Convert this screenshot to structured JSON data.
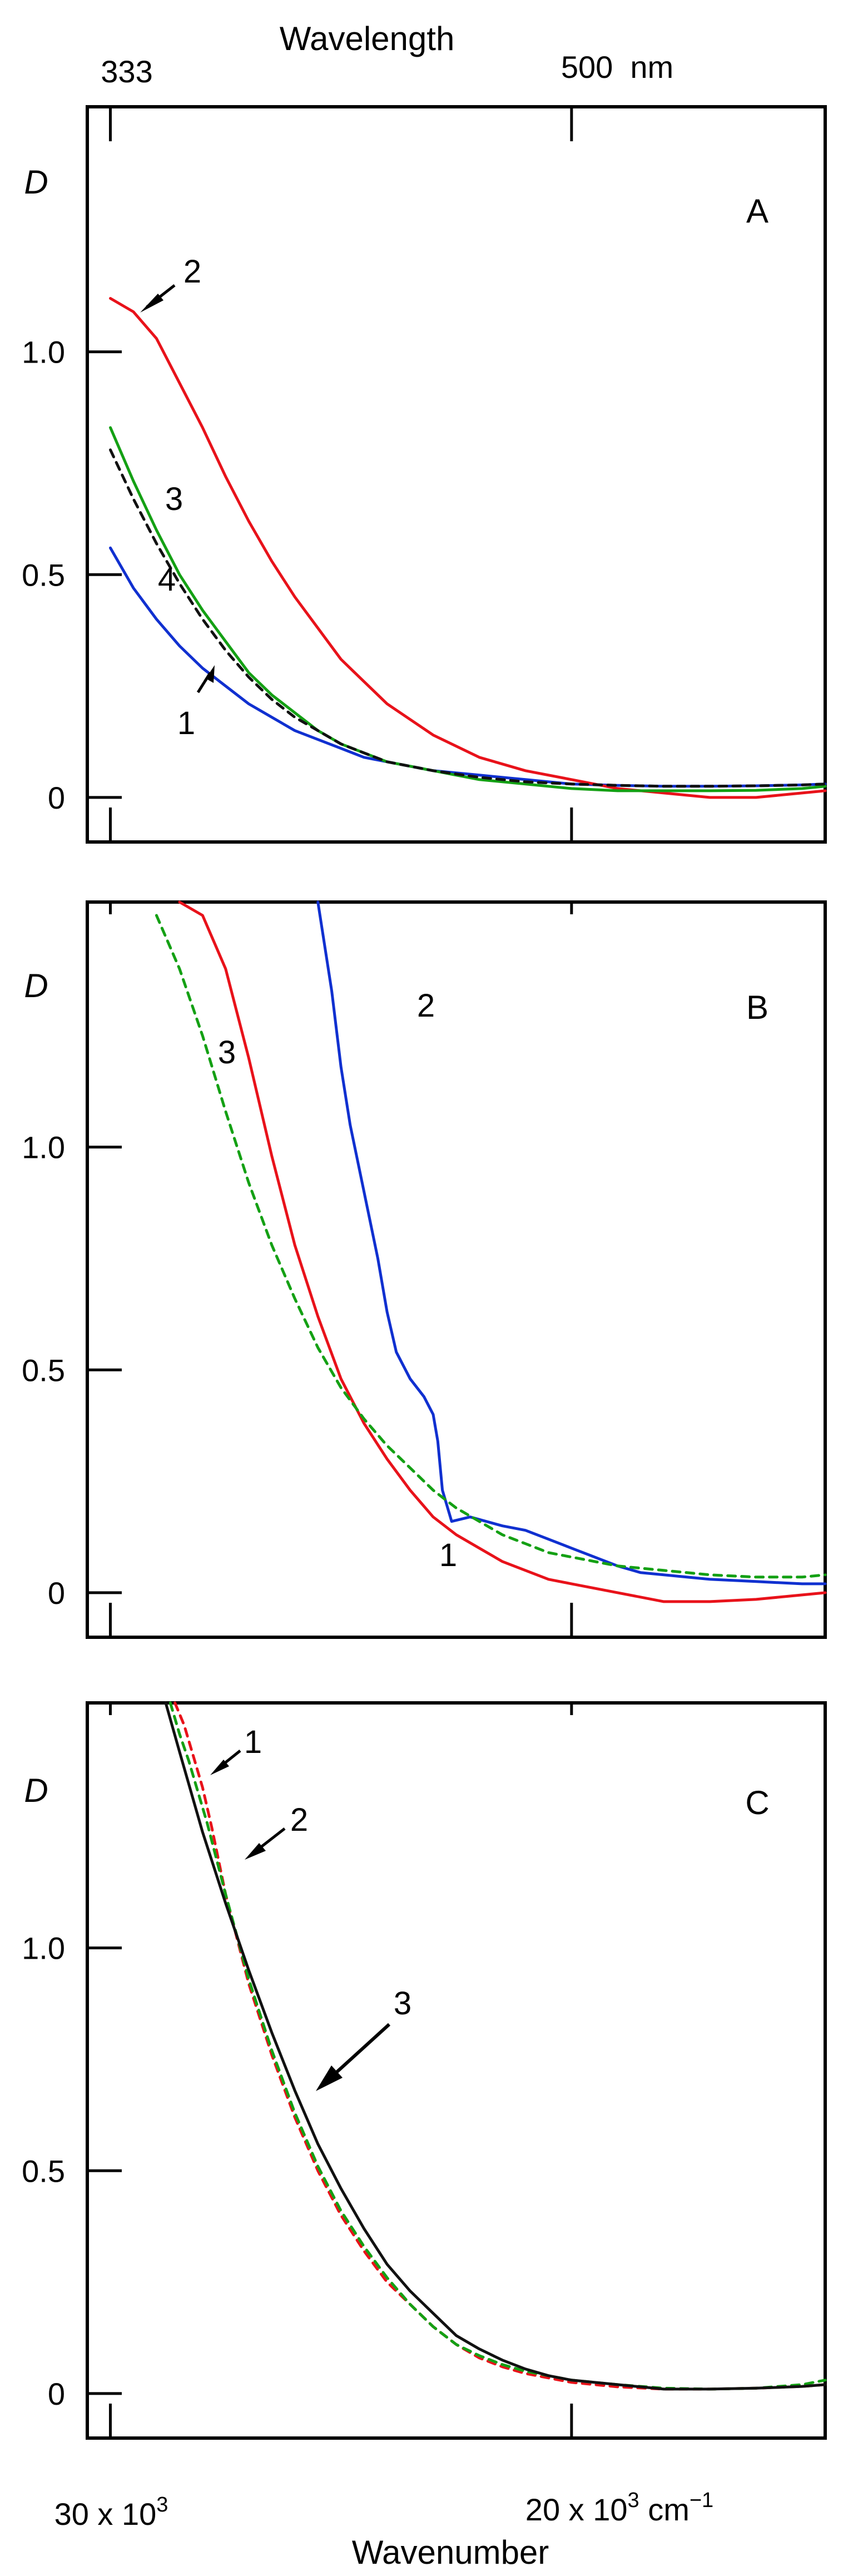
{
  "top_axis": {
    "title": "Wavelength",
    "tick_left": "333",
    "tick_mid": "500  nm"
  },
  "bottom_axis": {
    "title": "Wavenumber",
    "tick_left_base": "30 x 10",
    "tick_left_exp": "3",
    "tick_mid_base": "20 x 10",
    "tick_mid_exp": "3",
    "tick_mid_unit": " cm",
    "tick_mid_unit_exp": "−1"
  },
  "y_tick_labels": [
    "1.0",
    "0.5",
    "0"
  ],
  "chart_data": [
    {
      "panel": "A",
      "type": "line",
      "ylabel": "D",
      "xlabel": "Wavenumber",
      "x_unit": "10^3 cm^-1",
      "xlim": [
        30.5,
        14.5
      ],
      "ylim": [
        -0.1,
        1.55
      ],
      "yticks": [
        0,
        0.5,
        1.0
      ],
      "colors": {
        "1": "#1030d0",
        "2": "#e8121a",
        "3": "#14a014",
        "4": "#111111"
      },
      "series": [
        {
          "label": "1",
          "style": "solid",
          "x": [
            30,
            29.5,
            29,
            28.5,
            28,
            27.5,
            27,
            26.5,
            26,
            25.5,
            25,
            24.5,
            24,
            23,
            22,
            21,
            20,
            19,
            18,
            17,
            16,
            15,
            14.5
          ],
          "y": [
            0.56,
            0.47,
            0.4,
            0.34,
            0.29,
            0.25,
            0.21,
            0.18,
            0.15,
            0.13,
            0.11,
            0.09,
            0.08,
            0.06,
            0.05,
            0.04,
            0.03,
            0.027,
            0.025,
            0.025,
            0.026,
            0.028,
            0.03
          ]
        },
        {
          "label": "2",
          "style": "solid",
          "x": [
            30,
            29.5,
            29,
            28.5,
            28,
            27.5,
            27,
            26.5,
            26,
            25.5,
            25,
            24.5,
            24,
            23,
            22,
            21,
            20,
            19,
            18,
            17,
            16,
            15,
            14.5
          ],
          "y": [
            1.12,
            1.09,
            1.03,
            0.93,
            0.83,
            0.72,
            0.62,
            0.53,
            0.45,
            0.38,
            0.31,
            0.26,
            0.21,
            0.14,
            0.09,
            0.06,
            0.04,
            0.02,
            0.01,
            0.0,
            0.0,
            0.01,
            0.015
          ]
        },
        {
          "label": "3",
          "style": "solid",
          "x": [
            30,
            29.5,
            29,
            28.5,
            28,
            27.5,
            27,
            26.5,
            26,
            25.5,
            25,
            24.5,
            24,
            23,
            22,
            21,
            20,
            19,
            18,
            17,
            16,
            15,
            14.5
          ],
          "y": [
            0.83,
            0.71,
            0.6,
            0.5,
            0.42,
            0.35,
            0.28,
            0.23,
            0.19,
            0.15,
            0.12,
            0.1,
            0.08,
            0.06,
            0.04,
            0.03,
            0.02,
            0.015,
            0.015,
            0.015,
            0.016,
            0.02,
            0.025
          ]
        },
        {
          "label": "4",
          "style": "dashed",
          "x": [
            30,
            29.5,
            29,
            28.5,
            28,
            27.5,
            27,
            26.5,
            26,
            25.5,
            25,
            24.5,
            24,
            23,
            22,
            21,
            20,
            19,
            18,
            17,
            16,
            15,
            14.5
          ],
          "y": [
            0.78,
            0.67,
            0.57,
            0.48,
            0.4,
            0.33,
            0.27,
            0.22,
            0.18,
            0.15,
            0.12,
            0.1,
            0.08,
            0.06,
            0.045,
            0.035,
            0.03,
            0.027,
            0.025,
            0.025,
            0.026,
            0.028,
            0.03
          ]
        }
      ]
    },
    {
      "panel": "B",
      "type": "line",
      "ylabel": "D",
      "xlabel": "Wavenumber",
      "x_unit": "10^3 cm^-1",
      "xlim": [
        30.5,
        14.5
      ],
      "ylim": [
        -0.1,
        1.55
      ],
      "yticks": [
        0,
        0.5,
        1.0
      ],
      "colors": {
        "1": "#e8121a",
        "2": "#1030d0",
        "3": "#14a014"
      },
      "series": [
        {
          "label": "1",
          "style": "solid",
          "x": [
            28.5,
            28,
            27.5,
            27,
            26.5,
            26,
            25.5,
            25,
            24.5,
            24,
            23.5,
            23,
            22.5,
            22,
            21.5,
            21,
            20.5,
            20,
            19,
            18,
            17,
            16,
            15,
            14.5
          ],
          "y": [
            1.55,
            1.52,
            1.4,
            1.2,
            0.98,
            0.78,
            0.62,
            0.48,
            0.38,
            0.3,
            0.23,
            0.17,
            0.13,
            0.1,
            0.07,
            0.05,
            0.03,
            0.02,
            0.0,
            -0.02,
            -0.02,
            -0.015,
            -0.005,
            0.0
          ]
        },
        {
          "label": "2",
          "style": "solid",
          "x": [
            25.5,
            25.2,
            25,
            24.8,
            24.5,
            24.2,
            24,
            23.8,
            23.5,
            23.2,
            23,
            22.9,
            22.8,
            22.6,
            22.2,
            21.5,
            21,
            20.5,
            20,
            19.5,
            19,
            18.5,
            18,
            17,
            16,
            15,
            14.5
          ],
          "y": [
            1.55,
            1.35,
            1.18,
            1.05,
            0.9,
            0.75,
            0.63,
            0.54,
            0.48,
            0.44,
            0.4,
            0.34,
            0.23,
            0.16,
            0.17,
            0.15,
            0.14,
            0.12,
            0.1,
            0.08,
            0.06,
            0.045,
            0.04,
            0.03,
            0.025,
            0.02,
            0.02
          ]
        },
        {
          "label": "3",
          "style": "dashed",
          "x": [
            29,
            28.5,
            28,
            27.5,
            27,
            26.5,
            26,
            25.5,
            25,
            24.5,
            24,
            23.5,
            23,
            22.5,
            22,
            21.5,
            21,
            20.5,
            20,
            19,
            18,
            17,
            16,
            15,
            14.5
          ],
          "y": [
            1.52,
            1.4,
            1.25,
            1.08,
            0.92,
            0.78,
            0.66,
            0.55,
            0.46,
            0.39,
            0.33,
            0.28,
            0.23,
            0.19,
            0.16,
            0.13,
            0.11,
            0.09,
            0.08,
            0.06,
            0.05,
            0.04,
            0.035,
            0.035,
            0.04
          ]
        }
      ]
    },
    {
      "panel": "C",
      "type": "line",
      "ylabel": "D",
      "xlabel": "Wavenumber",
      "x_unit": "10^3 cm^-1",
      "xlim": [
        30.5,
        14.5
      ],
      "ylim": [
        -0.1,
        1.55
      ],
      "yticks": [
        0,
        0.5,
        1.0
      ],
      "colors": {
        "1": "#e8121a",
        "2": "#14a014",
        "3": "#111111"
      },
      "series": [
        {
          "label": "1",
          "style": "dashed",
          "x": [
            28.6,
            28.4,
            28.2,
            28,
            27.8,
            27.5,
            27,
            26.5,
            26,
            25.5,
            25,
            24.5,
            24,
            23.5,
            23,
            22.5,
            22,
            21.5,
            21,
            20.5,
            20,
            19,
            18,
            17,
            16,
            15,
            14.5
          ],
          "y": [
            1.55,
            1.5,
            1.43,
            1.36,
            1.27,
            1.12,
            0.92,
            0.76,
            0.62,
            0.5,
            0.4,
            0.32,
            0.25,
            0.2,
            0.15,
            0.11,
            0.08,
            0.06,
            0.045,
            0.035,
            0.025,
            0.015,
            0.01,
            0.01,
            0.012,
            0.016,
            0.02
          ]
        },
        {
          "label": "2",
          "style": "dashed",
          "x": [
            28.7,
            28.5,
            28.3,
            28.1,
            27.9,
            27.7,
            27.5,
            27,
            26.5,
            26,
            25.5,
            25,
            24.5,
            24,
            23.5,
            23,
            22.5,
            22,
            21.5,
            21,
            20.5,
            20,
            19,
            18,
            17,
            16,
            15,
            14.5
          ],
          "y": [
            1.55,
            1.48,
            1.42,
            1.35,
            1.28,
            1.2,
            1.12,
            0.93,
            0.77,
            0.63,
            0.51,
            0.41,
            0.33,
            0.26,
            0.2,
            0.15,
            0.11,
            0.085,
            0.065,
            0.05,
            0.04,
            0.03,
            0.02,
            0.012,
            0.01,
            0.012,
            0.02,
            0.03
          ]
        },
        {
          "label": "3",
          "style": "solid",
          "x": [
            28.8,
            28.5,
            28,
            27.5,
            27,
            26.5,
            26,
            25.5,
            25,
            24.5,
            24,
            23.5,
            23,
            22.5,
            22,
            21.5,
            21,
            20.5,
            20,
            19,
            18,
            17,
            16,
            15,
            14.5
          ],
          "y": [
            1.55,
            1.44,
            1.26,
            1.1,
            0.95,
            0.81,
            0.68,
            0.56,
            0.46,
            0.37,
            0.29,
            0.23,
            0.18,
            0.13,
            0.1,
            0.075,
            0.055,
            0.04,
            0.03,
            0.02,
            0.01,
            0.01,
            0.012,
            0.016,
            0.02
          ]
        }
      ]
    }
  ]
}
